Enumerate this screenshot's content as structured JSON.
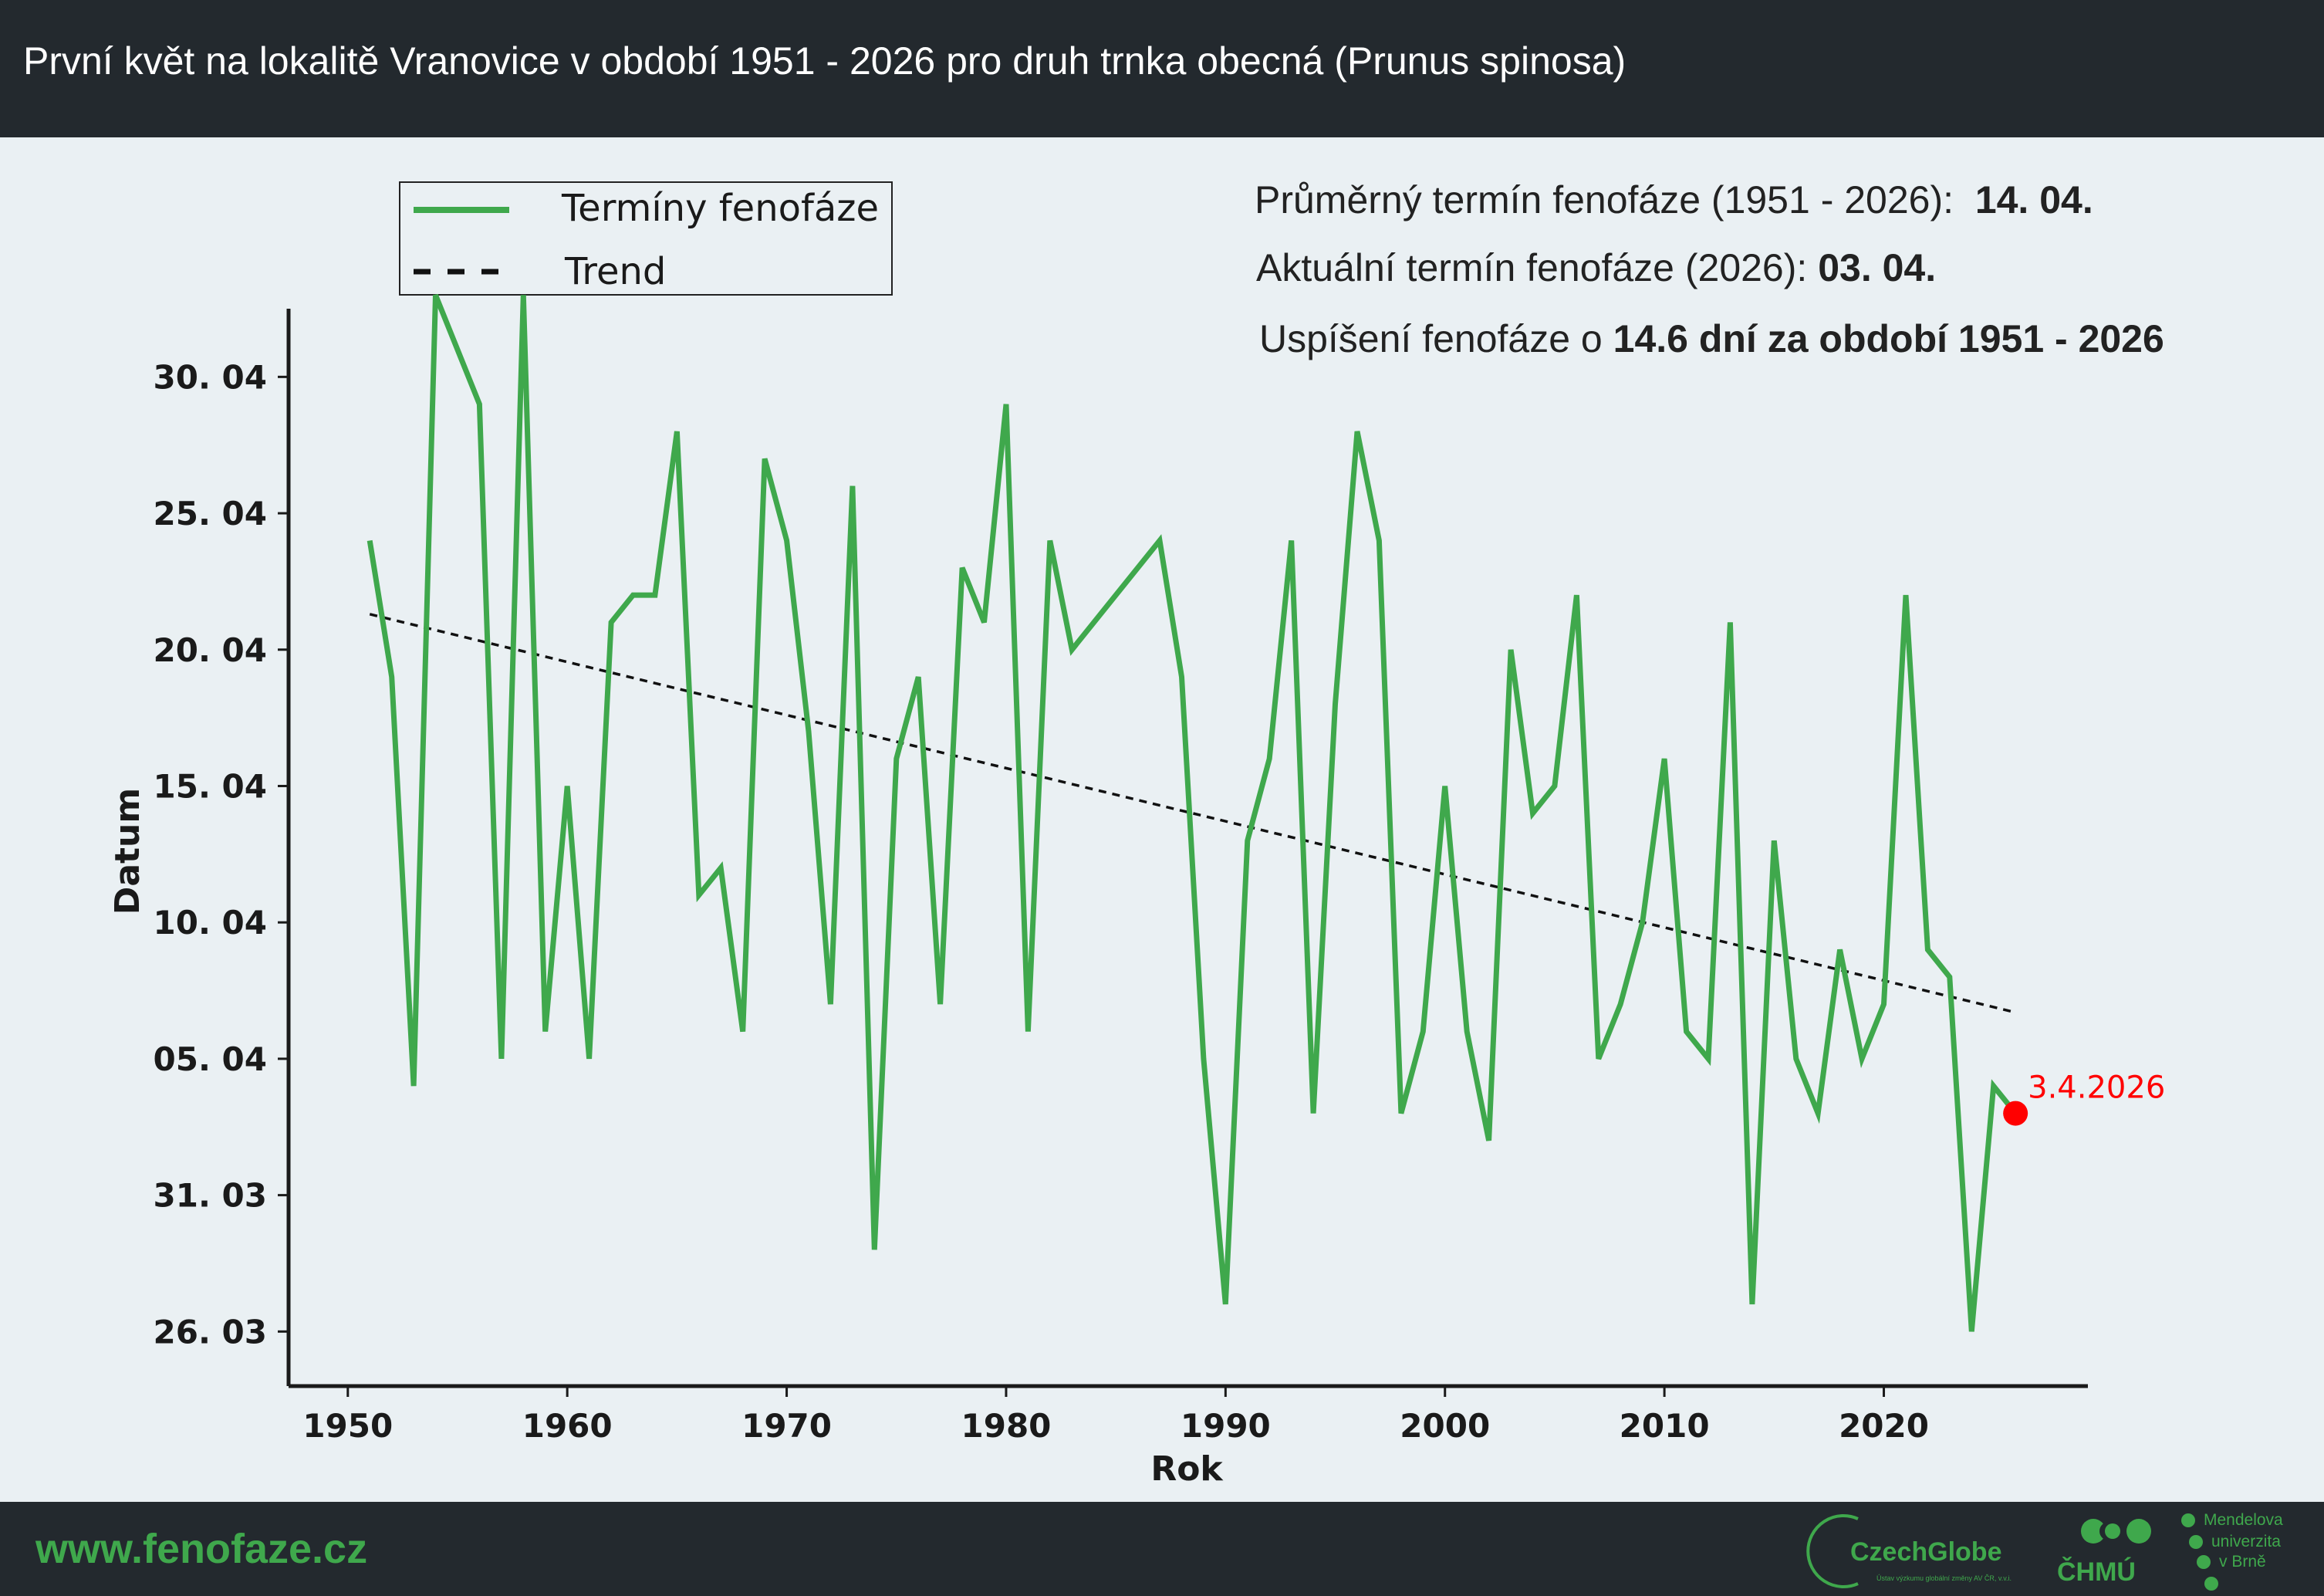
{
  "header": {
    "title": "První květ na lokalitě Vranovice v období 1951 - 2026 pro druh trnka obecná (Prunus spinosa)"
  },
  "info": {
    "avg_label": "Průměrný termín fenofáze (1951 - 2026):",
    "avg_value": "14. 04.",
    "current_label": "Aktuální termín fenofáze (2026):",
    "current_value": "03. 04.",
    "shift_label": "Uspíšení fenofáze o",
    "shift_value": "14.6 dní za období 1951 - 2026"
  },
  "footer": {
    "website": "www.fenofaze.cz",
    "logo_czechglobe": "CzechGlobe",
    "logo_czechglobe_sub": "Ústav výzkumu globální změny AV ČR, v.v.i.",
    "logo_chmu": "ČHMÚ",
    "logo_mendel": [
      "Mendelova",
      "univerzita",
      "v Brně"
    ]
  },
  "colors": {
    "line": "#3fa84c",
    "trend": "#111111",
    "highlight": "#ff0000",
    "header_bg": "#23292e",
    "plot_bg": "#eaf0f3"
  },
  "chart_data": {
    "type": "line",
    "xlabel": "Rok",
    "ylabel": "Datum",
    "xlim": [
      1947.3,
      2029.3
    ],
    "ylim": [
      -2.0,
      37.5
    ],
    "y_unit": "days since 26.03",
    "xticks": [
      1950,
      1960,
      1970,
      1980,
      1990,
      2000,
      2010,
      2020
    ],
    "yticks": [
      {
        "value": 0,
        "label": "26. 03"
      },
      {
        "value": 5,
        "label": "31. 03"
      },
      {
        "value": 10,
        "label": "05. 04"
      },
      {
        "value": 15,
        "label": "10. 04"
      },
      {
        "value": 20,
        "label": "15. 04"
      },
      {
        "value": 25,
        "label": "20. 04"
      },
      {
        "value": 30,
        "label": "25. 04"
      },
      {
        "value": 35,
        "label": "30. 04"
      }
    ],
    "legend": {
      "position": "top-left",
      "entries": [
        {
          "label": "Termíny fenofáze",
          "style": "solid-green"
        },
        {
          "label": "Trend",
          "style": "dashed-black"
        }
      ]
    },
    "series": [
      {
        "name": "Termíny fenofáze",
        "x": [
          1951,
          1952,
          1953,
          1954,
          1956,
          1957,
          1958,
          1959,
          1960,
          1961,
          1962,
          1963,
          1964,
          1965,
          1966,
          1967,
          1968,
          1969,
          1970,
          1971,
          1972,
          1973,
          1974,
          1975,
          1976,
          1977,
          1978,
          1979,
          1980,
          1981,
          1982,
          1983,
          1987,
          1988,
          1989,
          1990,
          1991,
          1992,
          1993,
          1994,
          1995,
          1996,
          1997,
          1998,
          1999,
          2000,
          2001,
          2002,
          2003,
          2004,
          2005,
          2006,
          2007,
          2008,
          2009,
          2010,
          2011,
          2012,
          2013,
          2014,
          2015,
          2016,
          2017,
          2018,
          2019,
          2020,
          2021,
          2022,
          2023,
          2024,
          2025,
          2026
        ],
        "y": [
          29,
          24,
          9,
          38,
          34,
          10,
          38,
          11,
          20,
          10,
          26,
          27,
          27,
          33,
          16,
          17,
          11,
          32,
          29,
          22,
          12,
          31,
          3,
          21,
          24,
          12,
          28,
          26,
          34,
          11,
          29,
          25,
          29,
          24,
          10,
          1,
          18,
          21,
          29,
          8,
          23,
          33,
          29,
          8,
          11,
          20,
          11,
          7,
          25,
          19,
          20,
          27,
          10,
          12,
          15,
          21,
          11,
          10,
          26,
          1,
          18,
          10,
          8,
          14,
          10,
          12,
          27,
          14,
          13,
          0,
          9,
          8
        ]
      },
      {
        "name": "Trend",
        "x": [
          1951,
          2026
        ],
        "y": [
          26.3,
          11.7
        ]
      }
    ],
    "annotations": [
      {
        "x": 2026,
        "y": 8,
        "label": "3.4.2026"
      }
    ]
  }
}
